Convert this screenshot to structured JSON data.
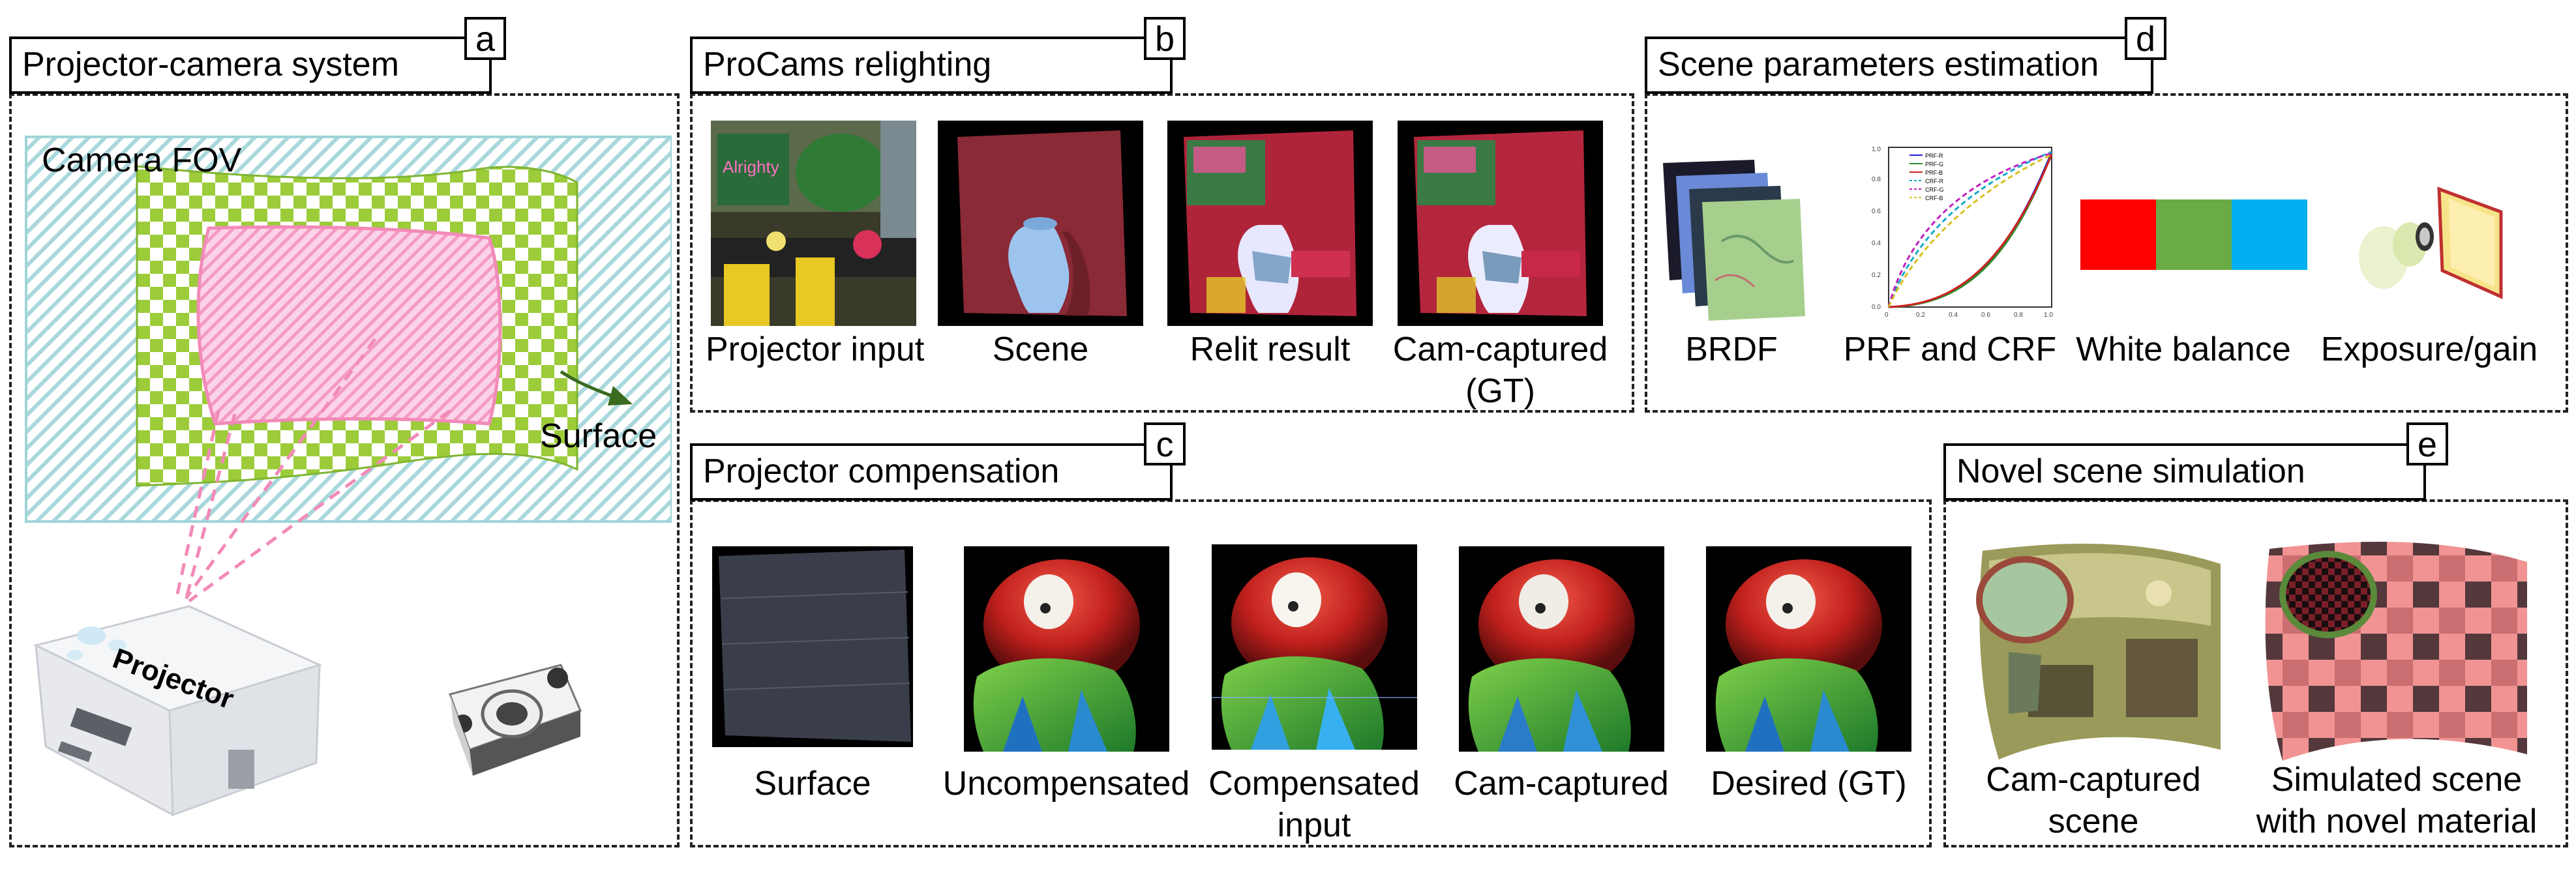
{
  "panels": {
    "a": {
      "tag": "a",
      "title": "Projector-camera system",
      "camera_fov": "Camera FOV",
      "surface": "Surface",
      "projector": "Projector"
    },
    "b": {
      "tag": "b",
      "title": "ProCams relighting",
      "captions": [
        "Projector input",
        "Scene",
        "Relit result",
        "Cam-captured",
        "(GT)"
      ]
    },
    "c": {
      "tag": "c",
      "title": "Projector compensation",
      "captions": [
        "Surface",
        "Uncompensated",
        "Compensated",
        "input",
        "Cam-captured",
        "Desired (GT)"
      ]
    },
    "d": {
      "tag": "d",
      "title": "Scene parameters estimation",
      "captions": [
        "BRDF",
        "PRF and CRF",
        "White balance",
        "Exposure/gain"
      ],
      "legend": [
        "PRF-R",
        "PRF-G",
        "PRF-B",
        "CRF-R",
        "CRF-G",
        "CRF-B"
      ],
      "ticks_x": [
        "0",
        "0.2",
        "0.4",
        "0.6",
        "0.8",
        "1.0"
      ],
      "ticks_y": [
        "0.0",
        "0.2",
        "0.4",
        "0.6",
        "0.8",
        "1.0"
      ]
    },
    "e": {
      "tag": "e",
      "title": "Novel scene simulation",
      "captions": [
        "Cam-captured",
        "scene",
        "Simulated scene",
        "with novel material"
      ]
    }
  },
  "colors": {
    "checker_green": "#9ccc3a",
    "pink": "#f28ab8",
    "fov": "#9fd4d8",
    "red": "#ff0000",
    "green": "#6aab45",
    "blue": "#00b0f0"
  }
}
